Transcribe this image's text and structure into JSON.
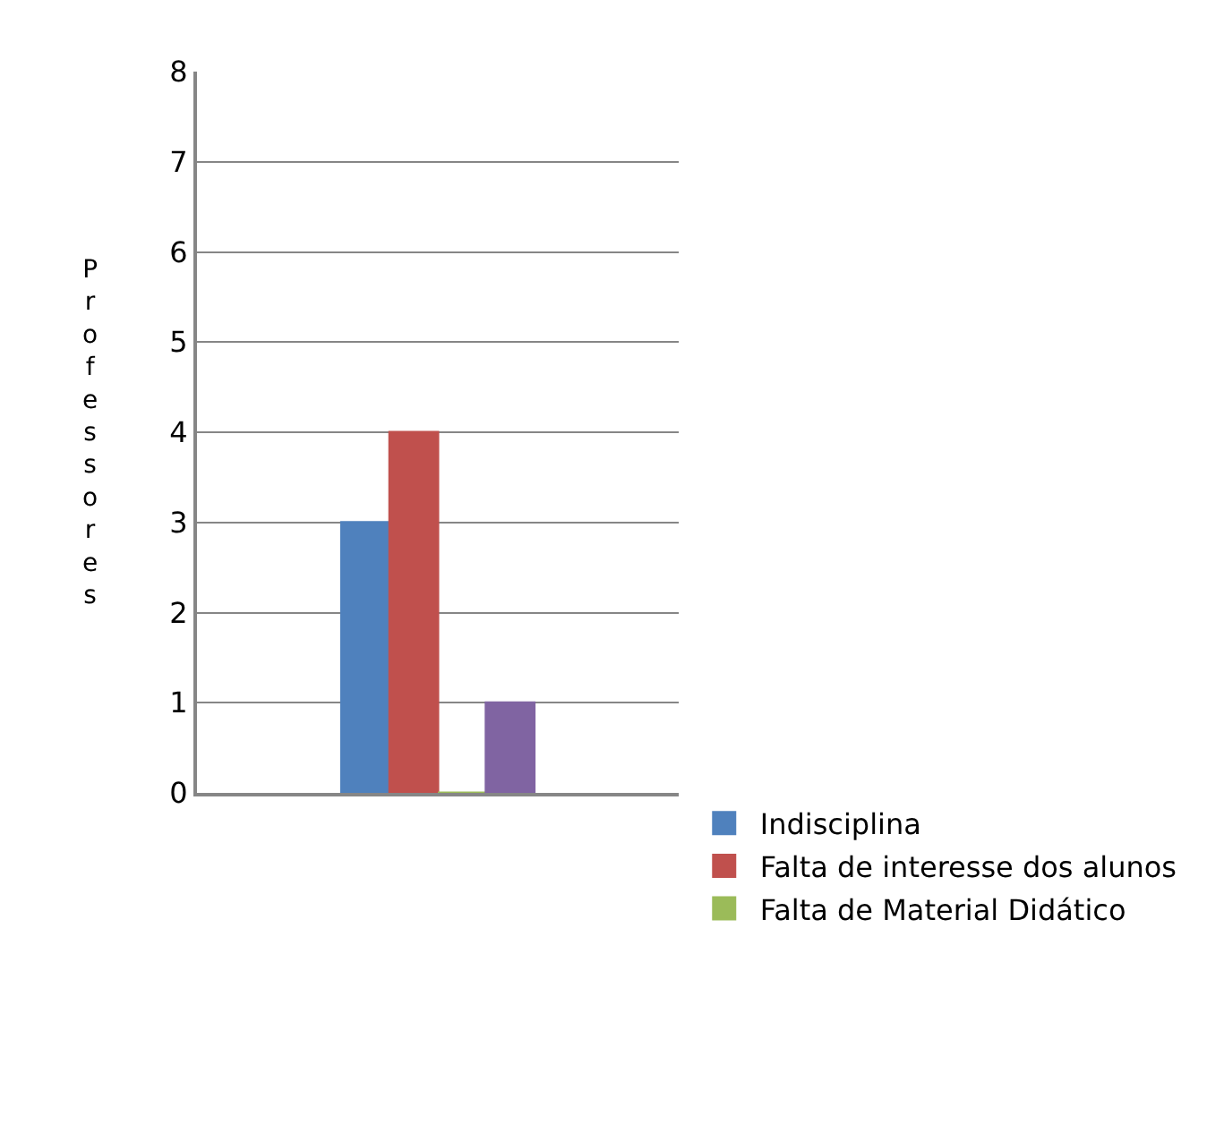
{
  "chart_data": {
    "type": "bar",
    "ylabel": "Professores",
    "categories": [
      null
    ],
    "series": [
      {
        "name": "Indisciplina",
        "color": "#4f81bd",
        "values": [
          3
        ]
      },
      {
        "name": "Falta de interesse dos alunos",
        "color": "#c0504d",
        "values": [
          4
        ]
      },
      {
        "name": "Falta de Material Didático",
        "color": "#9bbb59",
        "values": [
          0
        ]
      },
      {
        "color": "#8064a2",
        "values": [
          1
        ]
      }
    ],
    "ylim": [
      0,
      8
    ],
    "yticks": [
      0,
      1,
      2,
      3,
      4,
      5,
      6,
      7,
      8
    ],
    "grid": "y",
    "legend": "right"
  }
}
